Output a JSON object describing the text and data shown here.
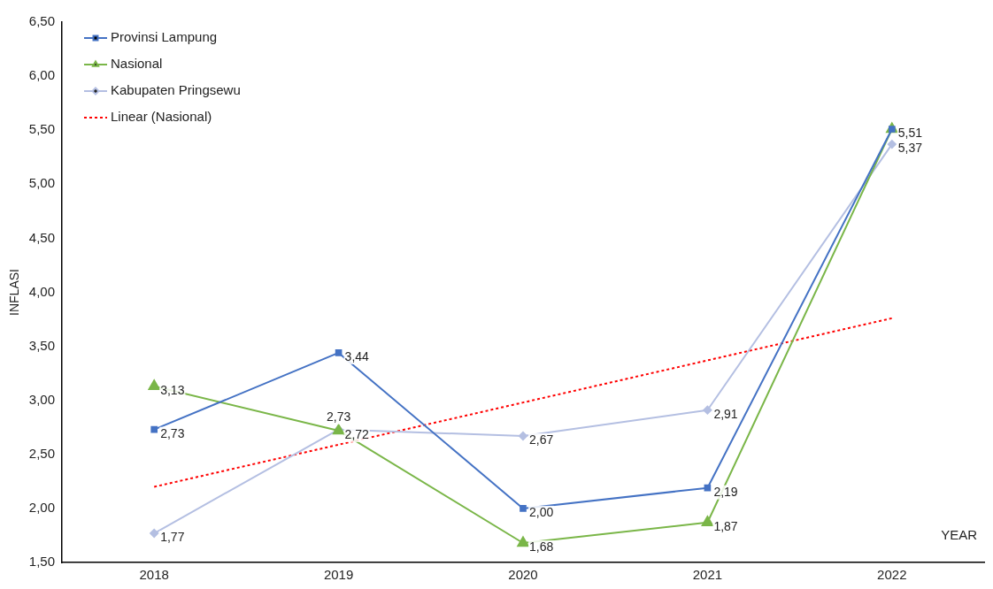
{
  "chart_data": {
    "type": "line",
    "xlabel": "YEAR",
    "ylabel": "INFLASI",
    "categories": [
      "2018",
      "2019",
      "2020",
      "2021",
      "2022"
    ],
    "series": [
      {
        "name": "Provinsi Lampung",
        "color": "#4472c4",
        "marker": "square",
        "values": [
          2.73,
          3.44,
          2.0,
          2.19,
          5.51
        ],
        "value_labels": [
          "2,73",
          "3,44",
          "2,00",
          "2,19",
          "5,51"
        ]
      },
      {
        "name": "Nasional",
        "color": "#7ab648",
        "marker": "triangle",
        "values": [
          3.13,
          2.72,
          1.68,
          1.87,
          5.51
        ],
        "value_labels": [
          "3,13",
          "2,72",
          "1,68",
          "1,87",
          null
        ]
      },
      {
        "name": "Kabupaten Pringsewu",
        "color": "#b4bfe2",
        "marker": "diamond",
        "values": [
          1.77,
          2.73,
          2.67,
          2.91,
          5.37
        ],
        "value_labels": [
          "1,77",
          "2,73",
          "2,67",
          "2,91",
          "5,37"
        ]
      },
      {
        "name": "Linear (Nasional)",
        "color": "#ff0000",
        "marker": "none",
        "line_style": "dotted",
        "values": [
          2.2,
          2.59,
          2.98,
          3.37,
          3.76
        ]
      }
    ],
    "ylim": [
      1.5,
      6.5
    ],
    "yticks": [
      {
        "value": 1.5,
        "label": "1,50"
      },
      {
        "value": 2,
        "label": "2,00"
      },
      {
        "value": 2.5,
        "label": "2,50"
      },
      {
        "value": 3,
        "label": "3,00"
      },
      {
        "value": 3.5,
        "label": "3,50"
      },
      {
        "value": 4,
        "label": "4,00"
      },
      {
        "value": 4.5,
        "label": "4,50"
      },
      {
        "value": 5,
        "label": "5,00"
      },
      {
        "value": 5.5,
        "label": "5,50"
      },
      {
        "value": 6,
        "label": "6,00"
      },
      {
        "value": 6.5,
        "label": "6,50"
      }
    ],
    "grid": false,
    "legend": "top left"
  }
}
